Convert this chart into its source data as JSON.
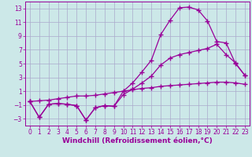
{
  "xlabel": "Windchill (Refroidissement éolien,°C)",
  "bg_color": "#cce8e8",
  "grid_color": "#aaaacc",
  "line_color": "#990099",
  "xlim": [
    -0.5,
    23.5
  ],
  "ylim": [
    -4.0,
    14.0
  ],
  "yticks": [
    -3,
    -1,
    1,
    3,
    5,
    7,
    9,
    11,
    13
  ],
  "xticks": [
    0,
    1,
    2,
    3,
    4,
    5,
    6,
    7,
    8,
    9,
    10,
    11,
    12,
    13,
    14,
    15,
    16,
    17,
    18,
    19,
    20,
    21,
    22,
    23
  ],
  "line1_x": [
    0,
    1,
    2,
    3,
    4,
    5,
    6,
    7,
    8,
    9,
    10,
    11,
    12,
    13,
    14,
    15,
    16,
    17,
    18,
    19,
    20,
    21,
    22,
    23
  ],
  "line1_y": [
    -0.5,
    -2.8,
    -0.9,
    -0.8,
    -0.9,
    -1.1,
    -3.2,
    -1.4,
    -1.1,
    -1.2,
    1.0,
    2.2,
    3.8,
    5.5,
    9.2,
    11.3,
    13.1,
    13.2,
    12.8,
    11.2,
    8.2,
    8.0,
    5.0,
    3.3
  ],
  "line2_x": [
    0,
    1,
    2,
    3,
    4,
    5,
    6,
    7,
    8,
    9,
    10,
    11,
    12,
    13,
    14,
    15,
    16,
    17,
    18,
    19,
    20,
    21,
    22,
    23
  ],
  "line2_y": [
    -0.5,
    -2.8,
    -0.9,
    -0.8,
    -0.9,
    -1.1,
    -3.2,
    -1.4,
    -1.1,
    -1.2,
    0.5,
    1.3,
    2.2,
    3.2,
    4.8,
    5.8,
    6.3,
    6.6,
    6.9,
    7.2,
    7.8,
    6.3,
    5.1,
    3.3
  ],
  "line3_x": [
    0,
    1,
    2,
    3,
    4,
    5,
    6,
    7,
    8,
    9,
    10,
    11,
    12,
    13,
    14,
    15,
    16,
    17,
    18,
    19,
    20,
    21,
    22,
    23
  ],
  "line3_y": [
    -0.5,
    -0.4,
    -0.3,
    -0.1,
    0.1,
    0.3,
    0.3,
    0.4,
    0.6,
    0.8,
    1.0,
    1.2,
    1.4,
    1.5,
    1.7,
    1.8,
    1.9,
    2.0,
    2.1,
    2.2,
    2.3,
    2.3,
    2.2,
    2.0
  ],
  "marker": "+",
  "markersize": 4,
  "markeredgewidth": 1.0,
  "linewidth": 0.9,
  "xlabel_fontsize": 6.5,
  "tick_fontsize": 5.5
}
